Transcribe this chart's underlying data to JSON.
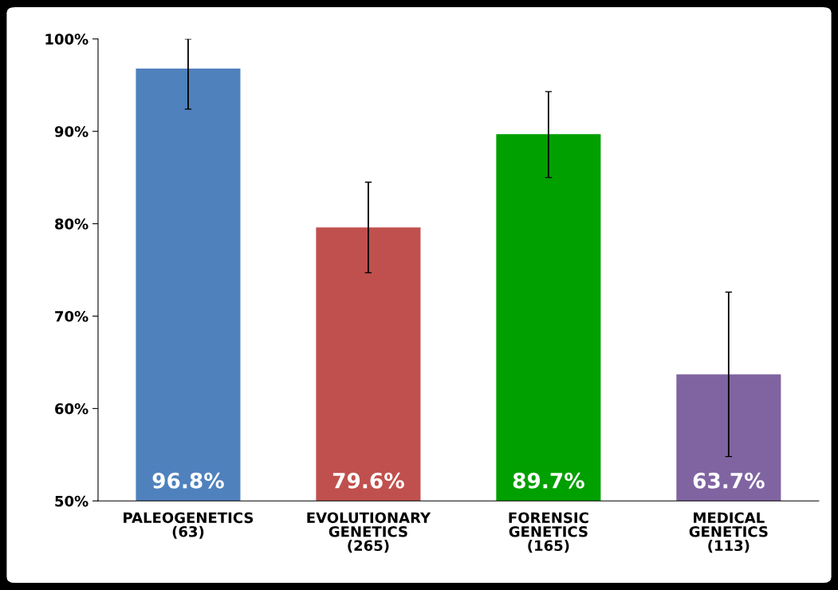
{
  "chart_data": {
    "type": "bar",
    "categories": [
      "PALEOGENETICS\n(63)",
      "EVOLUTIONARY\nGENETICS\n(265)",
      "FORENSIC\nGENETICS\n(165)",
      "MEDICAL\nGENETICS\n(113)"
    ],
    "values": [
      96.8,
      79.6,
      89.7,
      63.7
    ],
    "colors": [
      "#4f81bd",
      "#c0504d",
      "#00a000",
      "#8064a2"
    ],
    "errors": [
      [
        92.4,
        100
      ],
      [
        74.7,
        84.5
      ],
      [
        85.0,
        94.3
      ],
      [
        54.8,
        72.6
      ]
    ],
    "value_labels": [
      "96.8%",
      "79.6%",
      "89.7%",
      "63.7%"
    ],
    "ylim": [
      50,
      100
    ],
    "yticks": [
      {
        "value": 50,
        "label": "50%"
      },
      {
        "value": 60,
        "label": "60%"
      },
      {
        "value": 70,
        "label": "70%"
      },
      {
        "value": 80,
        "label": "80%"
      },
      {
        "value": 90,
        "label": "90%"
      },
      {
        "value": 100,
        "label": "100%"
      }
    ],
    "grid": false,
    "legend": false
  }
}
